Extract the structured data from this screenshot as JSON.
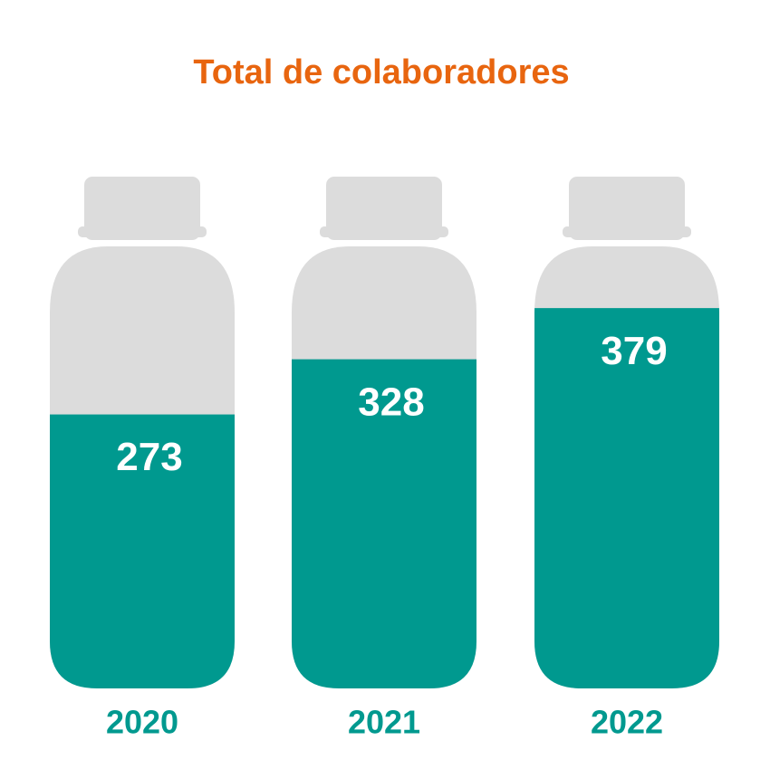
{
  "chart_data": {
    "type": "bar",
    "title": "Total de colaboradores",
    "categories": [
      "2020",
      "2021",
      "2022"
    ],
    "values": [
      273,
      328,
      379
    ],
    "color": "#00998f",
    "ylim": [
      0,
      510
    ]
  }
}
